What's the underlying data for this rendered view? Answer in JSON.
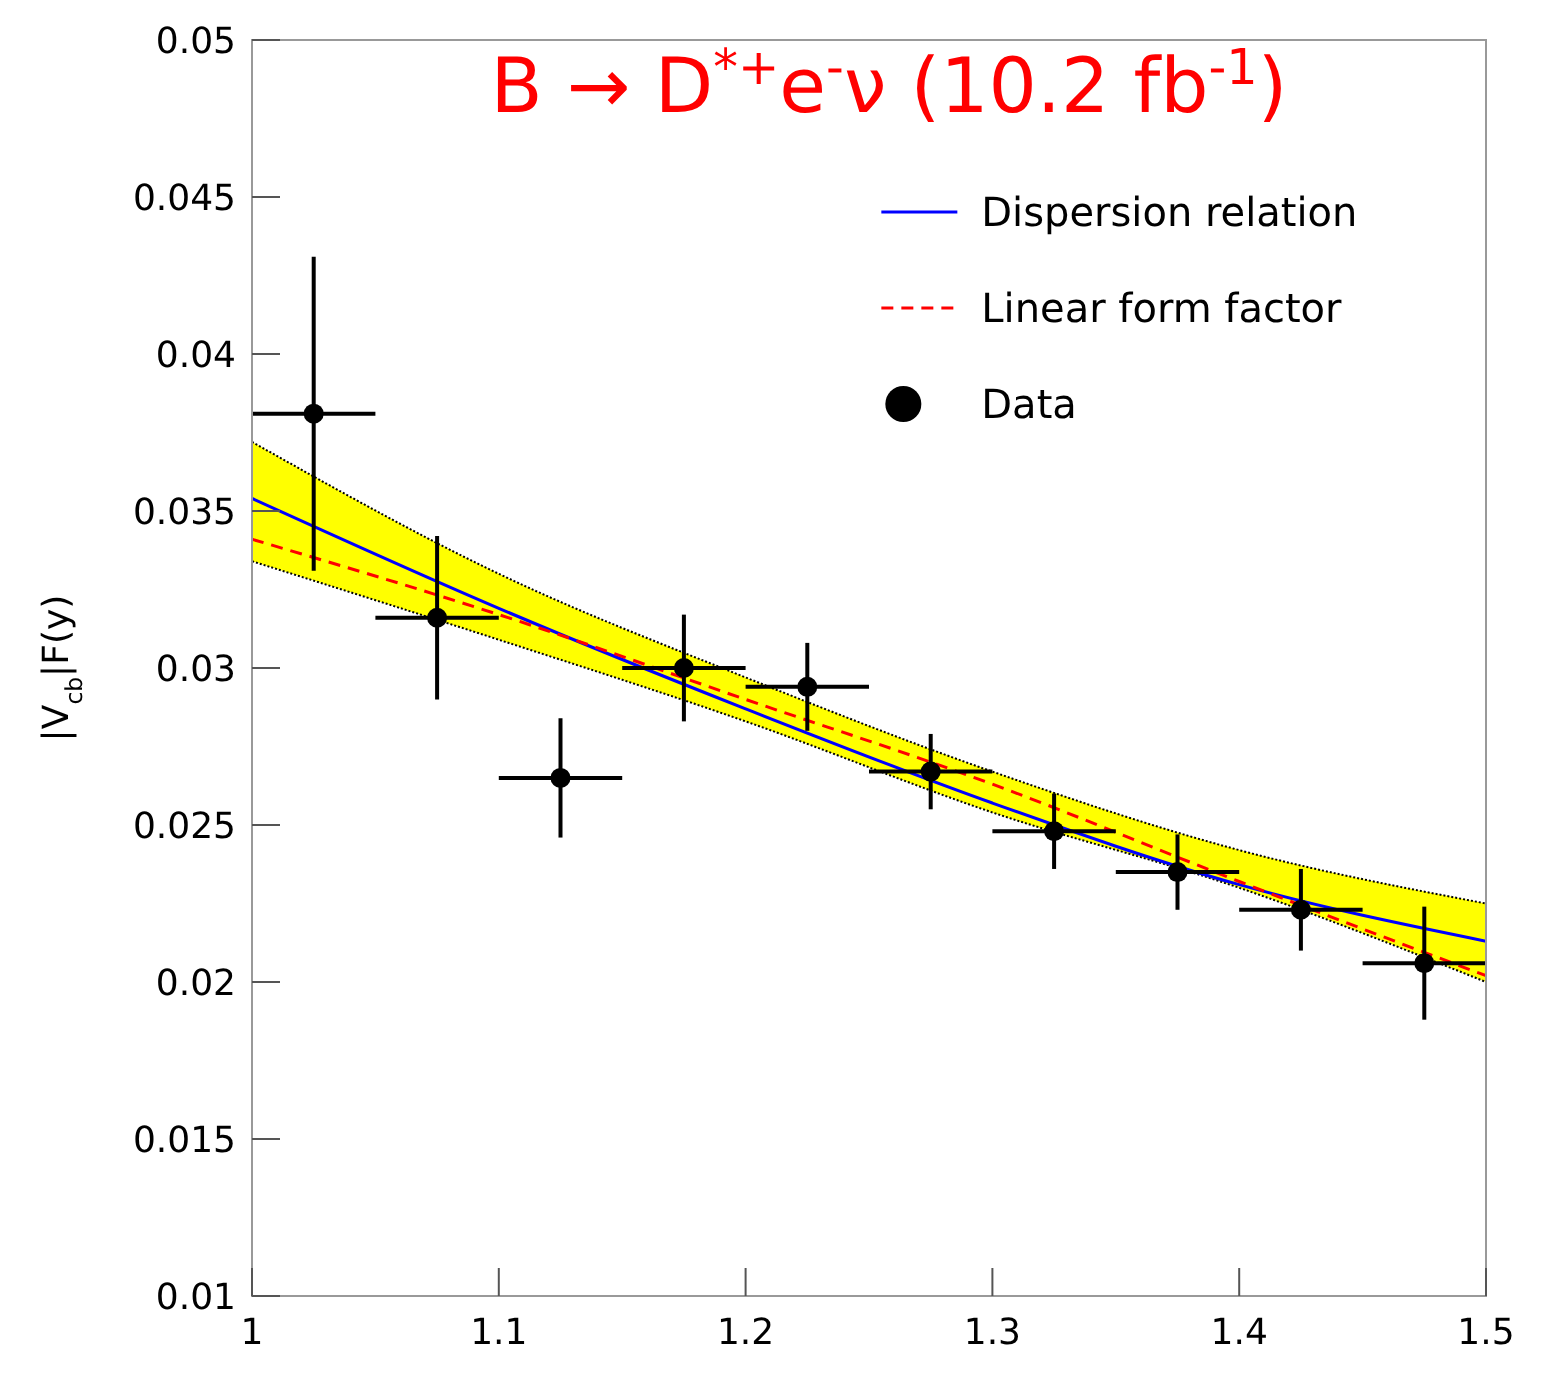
{
  "chart_data": {
    "type": "scatter",
    "title": "B → D$^{*+}$e$^{-}$ν (10.2 fb$^{-1}$)",
    "ylabel": "|V$_{cb}$|F(y)",
    "xlim": [
      1,
      1.5
    ],
    "xticks": [
      1,
      1.1,
      1.2,
      1.3,
      1.4,
      1.5
    ],
    "ylim": [
      0.01,
      0.05
    ],
    "yticks": [
      0.01,
      0.015,
      0.02,
      0.025,
      0.03,
      0.035,
      0.04,
      0.045,
      0.05
    ],
    "grid": false,
    "legend": "top right",
    "series": [
      {
        "name": "Dispersion relation",
        "type": "line",
        "color": "#0000ff",
        "line_style": "solid",
        "marker": "none",
        "x": [
          1.0,
          1.1,
          1.2,
          1.3,
          1.4,
          1.5
        ],
        "values": [
          0.0354,
          0.0319,
          0.0287,
          0.0257,
          0.0231,
          0.0213
        ],
        "lower": [
          0.0334,
          0.0309,
          0.0283,
          0.0254,
          0.023,
          0.02
        ],
        "upper": [
          0.0372,
          0.033,
          0.0297,
          0.0267,
          0.0242,
          0.0225
        ]
      },
      {
        "name": "Linear form factor",
        "type": "line",
        "color": "#ff0000",
        "line_style": "dashed",
        "marker": "none",
        "x": [
          1.0,
          1.1,
          1.2,
          1.3,
          1.4,
          1.5
        ],
        "values": [
          0.0341,
          0.0317,
          0.029,
          0.0263,
          0.0232,
          0.0202
        ]
      },
      {
        "name": "Data",
        "color": "#000000",
        "marker": "circle",
        "x": [
          1.025,
          1.075,
          1.125,
          1.175,
          1.225,
          1.275,
          1.325,
          1.375,
          1.425,
          1.475
        ],
        "values": [
          0.0381,
          0.0316,
          0.0265,
          0.03,
          0.0294,
          0.0267,
          0.0248,
          0.0235,
          0.0223,
          0.0206
        ],
        "errors": [
          0.005,
          0.0026,
          0.0019,
          0.0017,
          0.0014,
          0.0012,
          0.0012,
          0.0012,
          0.0013,
          0.0018
        ],
        "xerrors": [
          0.025,
          0.025,
          0.025,
          0.025,
          0.025,
          0.025,
          0.025,
          0.025,
          0.025,
          0.025
        ]
      }
    ]
  }
}
